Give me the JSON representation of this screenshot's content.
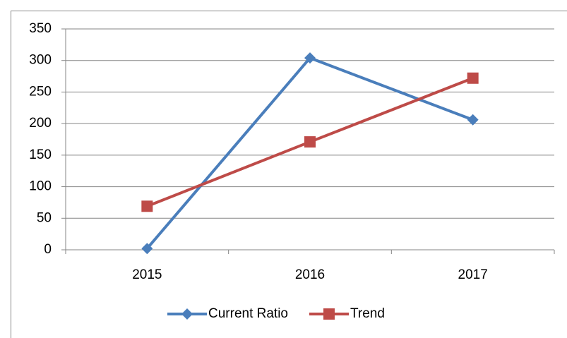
{
  "chart_data": {
    "type": "line",
    "categories": [
      "2015",
      "2016",
      "2017"
    ],
    "series": [
      {
        "name": "Current Ratio",
        "color": "#4a7ebb",
        "marker": "diamond",
        "values": [
          2,
          304,
          206
        ]
      },
      {
        "name": "Trend",
        "color": "#be4b48",
        "marker": "square",
        "values": [
          69,
          171,
          272
        ]
      }
    ],
    "ylim": [
      0,
      350
    ],
    "yticks": [
      0,
      50,
      100,
      150,
      200,
      250,
      300,
      350
    ],
    "grid": true,
    "legend": "bottom"
  }
}
